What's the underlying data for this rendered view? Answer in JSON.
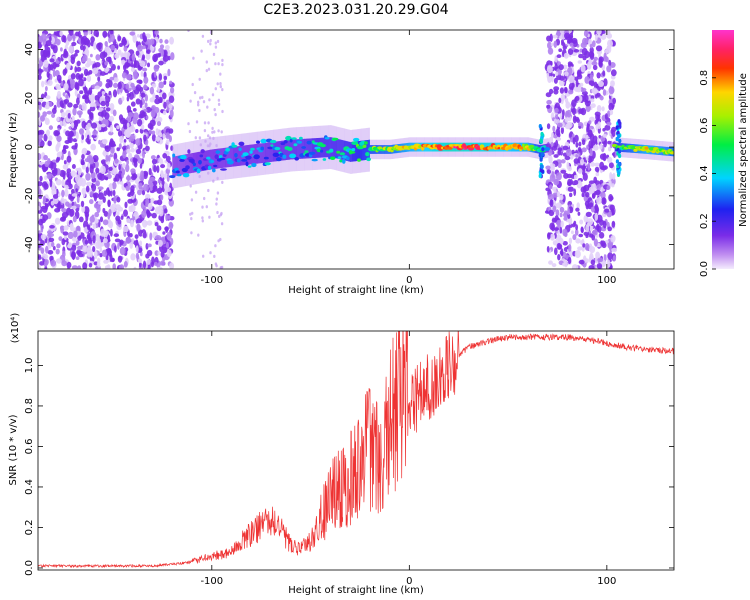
{
  "title": "C2E3.2023.031.20.29.G04",
  "colors": {
    "snr_line": "#ee3333",
    "scatter_violet": "#7d2fe6",
    "background": "#ffffff"
  },
  "chart_data": [
    {
      "type": "heatmap",
      "xlabel": "Height of straight line (km)",
      "ylabel": "Frequency (Hz)",
      "xlim": [
        -188,
        134
      ],
      "ylim": [
        -50,
        48
      ],
      "x_ticks": [
        -100,
        0,
        100
      ],
      "x_tick_labels": [
        "-100",
        "0",
        "100"
      ],
      "y_ticks": [
        -40,
        -20,
        0,
        20,
        40
      ],
      "y_tick_labels": [
        "-40",
        "-20",
        "0",
        "20",
        "40"
      ],
      "colorbar": {
        "label": "Normalized spectral amplitude",
        "range": [
          0,
          1
        ],
        "ticks": [
          0.0,
          0.2,
          0.4,
          0.6,
          0.8
        ],
        "tick_labels": [
          "0.0",
          "0.2",
          "0.4",
          "0.6",
          "0.8"
        ],
        "colormap": "rainbow (violet-blue-cyan-green-yellow-red-magenta)"
      },
      "noise_regions_x": [
        [
          -188,
          -120
        ],
        [
          70,
          104
        ]
      ],
      "signal_track": {
        "x": [
          -120,
          -100,
          -80,
          -60,
          -40,
          -30,
          -20,
          -10,
          0,
          20,
          40,
          60,
          66,
          72,
          104,
          120,
          134
        ],
        "frequency": [
          -8,
          -5,
          -3,
          -1,
          0,
          -2,
          -1,
          -1,
          0,
          0,
          0,
          0,
          -1,
          0,
          0,
          -1,
          -2
        ],
        "amplitude": [
          0.25,
          0.3,
          0.3,
          0.35,
          0.4,
          0.45,
          0.55,
          0.6,
          0.7,
          0.85,
          0.8,
          0.7,
          0.5,
          0.2,
          0.5,
          0.7,
          0.6
        ]
      }
    },
    {
      "type": "line",
      "xlabel": "Height of straight line (km)",
      "ylabel": "SNR (10 * v/v)",
      "y_scale_note": "(x10⁴)",
      "xlim": [
        -188,
        134
      ],
      "ylim": [
        -0.01,
        1.17
      ],
      "x_ticks": [
        -100,
        0,
        100
      ],
      "x_tick_labels": [
        "-100",
        "0",
        "100"
      ],
      "y_ticks": [
        0.0,
        0.2,
        0.4,
        0.6,
        0.8,
        1.0
      ],
      "y_tick_labels": [
        "0.0",
        "0.2",
        "0.4",
        "0.6",
        "0.8",
        "1.0"
      ],
      "series": [
        {
          "x": [
            -188,
            -160,
            -130,
            -118,
            -110,
            -105,
            -100,
            -95,
            -90,
            -85,
            -80,
            -75,
            -70,
            -65,
            -60,
            -55,
            -50,
            -45,
            -40,
            -35,
            -30,
            -25,
            -22,
            -20,
            -18,
            -15,
            -10,
            -5,
            0,
            5,
            10,
            15,
            20,
            25,
            30,
            40,
            50,
            60,
            70,
            80,
            90,
            100,
            105,
            110,
            120,
            134
          ],
          "y": [
            0.01,
            0.01,
            0.01,
            0.02,
            0.03,
            0.04,
            0.05,
            0.06,
            0.07,
            0.12,
            0.15,
            0.18,
            0.2,
            0.16,
            0.1,
            0.08,
            0.12,
            0.2,
            0.28,
            0.33,
            0.38,
            0.42,
            0.48,
            0.5,
            0.5,
            0.45,
            0.58,
            0.72,
            0.8,
            0.85,
            0.9,
            0.95,
            1.0,
            1.05,
            1.09,
            1.12,
            1.14,
            1.14,
            1.14,
            1.14,
            1.13,
            1.11,
            1.1,
            1.09,
            1.08,
            1.07
          ]
        }
      ]
    }
  ]
}
